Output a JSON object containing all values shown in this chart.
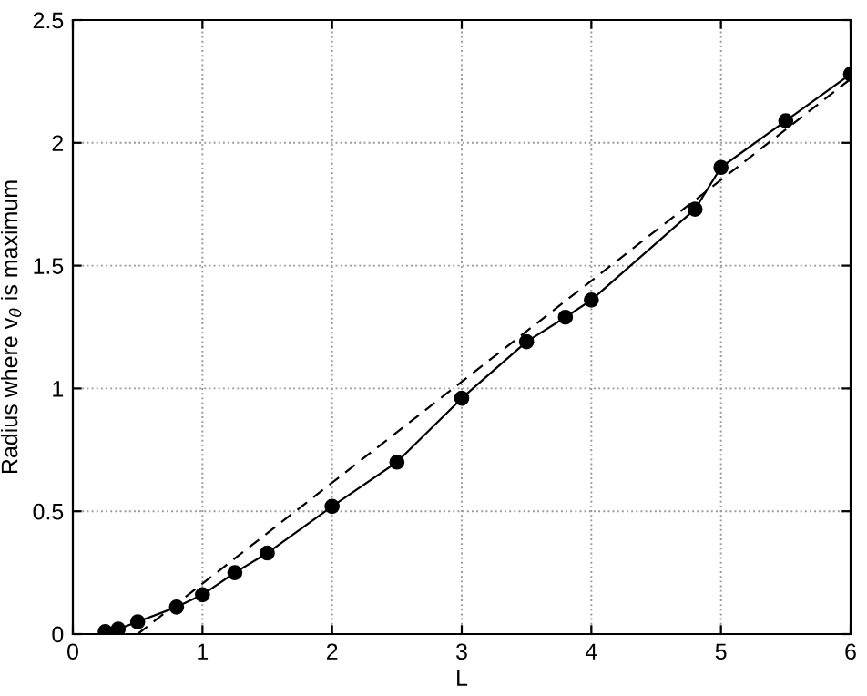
{
  "chart_data": {
    "type": "line",
    "xlabel": "L",
    "ylabel": "Radius where v$_{θ}$ is maximum",
    "xlim": [
      0,
      6
    ],
    "ylim": [
      0,
      2.5
    ],
    "xticks": [
      0,
      1,
      2,
      3,
      4,
      5,
      6
    ],
    "yticks": [
      0,
      0.5,
      1,
      1.5,
      2,
      2.5
    ],
    "grid": true,
    "legend": false,
    "series": [
      {
        "color": "#000000",
        "marker": "circle",
        "line_style": "solid",
        "x": [
          0.25,
          0.35,
          0.5,
          0.8,
          1,
          1.25,
          1.5,
          2,
          2.5,
          3,
          3.5,
          3.8,
          4,
          4.8,
          5,
          5.5,
          6
        ],
        "values": [
          0.01,
          0.02,
          0.05,
          0.11,
          0.16,
          0.25,
          0.33,
          0.52,
          0.7,
          0.96,
          1.19,
          1.29,
          1.36,
          1.73,
          1.9,
          2.09,
          2.28
        ]
      },
      {
        "color": "#000000",
        "marker": "none",
        "line_style": "dashed",
        "x": [
          0.5,
          6
        ],
        "values": [
          0,
          2.26
        ]
      }
    ]
  }
}
